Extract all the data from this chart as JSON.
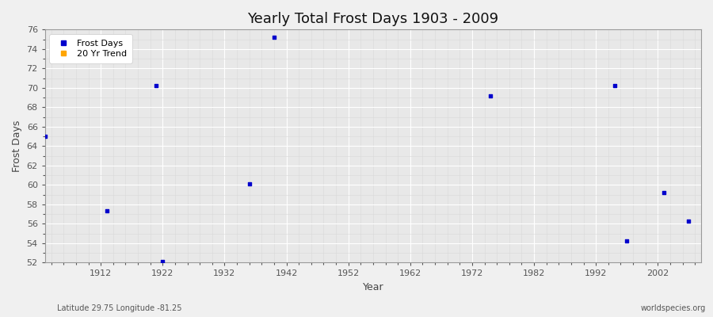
{
  "title": "Yearly Total Frost Days 1903 - 2009",
  "xlabel": "Year",
  "ylabel": "Frost Days",
  "xlim": [
    1903,
    2009
  ],
  "ylim": [
    52,
    76
  ],
  "yticks": [
    52,
    54,
    56,
    58,
    60,
    62,
    64,
    66,
    68,
    70,
    72,
    74,
    76
  ],
  "xticks": [
    1912,
    1922,
    1932,
    1942,
    1952,
    1962,
    1972,
    1982,
    1992,
    2002
  ],
  "background_color": "#f0f0f0",
  "plot_bg_color": "#e8e8e8",
  "grid_color_major": "#ffffff",
  "grid_color_minor": "#d8d8d8",
  "frost_days_color": "#0000cc",
  "trend_color": "#ffa500",
  "scatter_points": [
    [
      1903,
      65.0
    ],
    [
      1913,
      57.3
    ],
    [
      1921,
      70.2
    ],
    [
      1922,
      52.1
    ],
    [
      1936,
      60.1
    ],
    [
      1940,
      75.2
    ],
    [
      1975,
      69.2
    ],
    [
      1995,
      70.2
    ],
    [
      1997,
      54.2
    ],
    [
      2003,
      59.2
    ],
    [
      2007,
      56.3
    ]
  ],
  "legend_labels": [
    "Frost Days",
    "20 Yr Trend"
  ],
  "bottom_left_text": "Latitude 29.75 Longitude -81.25",
  "bottom_right_text": "worldspecies.org",
  "marker_size": 3,
  "title_fontsize": 13,
  "axis_label_fontsize": 9,
  "tick_fontsize": 8
}
